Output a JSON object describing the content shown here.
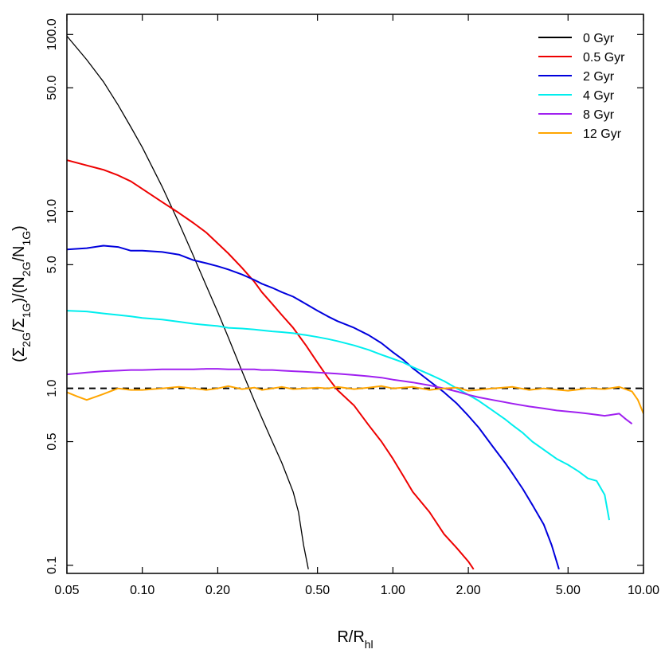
{
  "chart_data": {
    "type": "line",
    "xlabel": {
      "base": "R/R",
      "sub": "hl"
    },
    "ylabel": {
      "parts": [
        {
          "t": "(Σ",
          "sub": false
        },
        {
          "t": "2G",
          "sub": true
        },
        {
          "t": "/Σ",
          "sub": false
        },
        {
          "t": "1G",
          "sub": true
        },
        {
          "t": ")/(N",
          "sub": false
        },
        {
          "t": "2G",
          "sub": true
        },
        {
          "t": "/N",
          "sub": false
        },
        {
          "t": "1G",
          "sub": true
        },
        {
          "t": ")",
          "sub": false
        }
      ]
    },
    "x_scale": "log",
    "y_scale": "log",
    "xlim": [
      0.05,
      10.0
    ],
    "ylim": [
      0.09,
      130
    ],
    "x_ticks": [
      {
        "value": 0.05,
        "label": "0.05"
      },
      {
        "value": 0.1,
        "label": "0.10"
      },
      {
        "value": 0.2,
        "label": "0.20"
      },
      {
        "value": 0.5,
        "label": "0.50"
      },
      {
        "value": 1.0,
        "label": "1.00"
      },
      {
        "value": 2.0,
        "label": "2.00"
      },
      {
        "value": 5.0,
        "label": "5.00"
      },
      {
        "value": 10.0,
        "label": "10.00"
      }
    ],
    "y_ticks": [
      {
        "value": 0.1,
        "label": "0.1"
      },
      {
        "value": 0.5,
        "label": "0.5"
      },
      {
        "value": 1.0,
        "label": "1.0"
      },
      {
        "value": 5.0,
        "label": "5.0"
      },
      {
        "value": 10.0,
        "label": "10.0"
      },
      {
        "value": 50.0,
        "label": "50.0"
      },
      {
        "value": 100.0,
        "label": "100.0"
      }
    ],
    "reference_line": {
      "y": 1.0,
      "style": "dashed",
      "color": "#000000"
    },
    "legend_position": "top-right",
    "grid": false,
    "series": [
      {
        "name": "0 Gyr",
        "color": "#000000",
        "x": [
          0.05,
          0.06,
          0.07,
          0.08,
          0.09,
          0.1,
          0.12,
          0.14,
          0.16,
          0.18,
          0.2,
          0.22,
          0.25,
          0.28,
          0.3,
          0.33,
          0.36,
          0.4,
          0.42,
          0.44,
          0.46
        ],
        "y": [
          98,
          72,
          54,
          40,
          30,
          23,
          13.8,
          8.6,
          5.6,
          3.8,
          2.7,
          1.95,
          1.25,
          0.85,
          0.68,
          0.5,
          0.38,
          0.26,
          0.2,
          0.13,
          0.095
        ]
      },
      {
        "name": "0.5 Gyr",
        "color": "#ee0000",
        "x": [
          0.05,
          0.06,
          0.07,
          0.08,
          0.09,
          0.1,
          0.12,
          0.14,
          0.16,
          0.18,
          0.2,
          0.22,
          0.25,
          0.28,
          0.3,
          0.33,
          0.36,
          0.4,
          0.45,
          0.5,
          0.55,
          0.6,
          0.7,
          0.8,
          0.9,
          1.0,
          1.1,
          1.2,
          1.4,
          1.6,
          1.8,
          2.0,
          2.1
        ],
        "y": [
          19.5,
          18.2,
          17.2,
          16.0,
          14.8,
          13.4,
          11.3,
          9.8,
          8.6,
          7.6,
          6.6,
          5.8,
          4.8,
          4.0,
          3.5,
          3.0,
          2.6,
          2.2,
          1.75,
          1.4,
          1.15,
          0.98,
          0.8,
          0.62,
          0.5,
          0.4,
          0.32,
          0.26,
          0.2,
          0.15,
          0.125,
          0.105,
          0.095
        ]
      },
      {
        "name": "2 Gyr",
        "color": "#0000dd",
        "x": [
          0.05,
          0.06,
          0.07,
          0.08,
          0.09,
          0.1,
          0.12,
          0.14,
          0.16,
          0.18,
          0.2,
          0.22,
          0.25,
          0.28,
          0.3,
          0.33,
          0.36,
          0.4,
          0.45,
          0.5,
          0.55,
          0.6,
          0.7,
          0.8,
          0.9,
          1.0,
          1.1,
          1.2,
          1.4,
          1.6,
          1.8,
          2.0,
          2.2,
          2.5,
          2.8,
          3.0,
          3.3,
          3.6,
          4.0,
          4.3,
          4.6
        ],
        "y": [
          6.1,
          6.2,
          6.4,
          6.3,
          6.0,
          6.0,
          5.9,
          5.7,
          5.3,
          5.1,
          4.9,
          4.7,
          4.4,
          4.1,
          3.9,
          3.7,
          3.5,
          3.3,
          3.0,
          2.75,
          2.55,
          2.4,
          2.2,
          2.0,
          1.8,
          1.6,
          1.45,
          1.3,
          1.1,
          0.95,
          0.82,
          0.7,
          0.6,
          0.47,
          0.38,
          0.33,
          0.27,
          0.22,
          0.17,
          0.13,
          0.095
        ]
      },
      {
        "name": "4 Gyr",
        "color": "#00eeee",
        "x": [
          0.05,
          0.06,
          0.07,
          0.08,
          0.09,
          0.1,
          0.12,
          0.14,
          0.16,
          0.18,
          0.2,
          0.22,
          0.25,
          0.28,
          0.3,
          0.33,
          0.36,
          0.4,
          0.45,
          0.5,
          0.55,
          0.6,
          0.7,
          0.8,
          0.9,
          1.0,
          1.1,
          1.2,
          1.4,
          1.6,
          1.8,
          2.0,
          2.2,
          2.5,
          2.8,
          3.0,
          3.3,
          3.6,
          4.0,
          4.5,
          5.0,
          5.5,
          6.0,
          6.5,
          7.0,
          7.3
        ],
        "y": [
          2.75,
          2.72,
          2.65,
          2.6,
          2.55,
          2.5,
          2.45,
          2.38,
          2.32,
          2.28,
          2.25,
          2.2,
          2.18,
          2.15,
          2.13,
          2.1,
          2.08,
          2.05,
          2.0,
          1.95,
          1.9,
          1.85,
          1.75,
          1.65,
          1.55,
          1.47,
          1.4,
          1.32,
          1.2,
          1.1,
          1.0,
          0.92,
          0.85,
          0.75,
          0.67,
          0.62,
          0.56,
          0.5,
          0.45,
          0.4,
          0.37,
          0.34,
          0.31,
          0.3,
          0.25,
          0.18
        ]
      },
      {
        "name": "8 Gyr",
        "color": "#a020f0",
        "x": [
          0.05,
          0.06,
          0.07,
          0.08,
          0.09,
          0.1,
          0.12,
          0.14,
          0.16,
          0.18,
          0.2,
          0.22,
          0.25,
          0.28,
          0.3,
          0.33,
          0.36,
          0.4,
          0.45,
          0.5,
          0.55,
          0.6,
          0.7,
          0.8,
          0.9,
          1.0,
          1.2,
          1.4,
          1.6,
          1.8,
          2.0,
          2.2,
          2.5,
          3.0,
          3.5,
          4.0,
          4.5,
          5.0,
          5.5,
          6.0,
          7.0,
          8.0,
          8.5,
          9.0
        ],
        "y": [
          1.2,
          1.23,
          1.25,
          1.26,
          1.27,
          1.27,
          1.28,
          1.28,
          1.28,
          1.29,
          1.29,
          1.28,
          1.28,
          1.28,
          1.27,
          1.27,
          1.26,
          1.25,
          1.24,
          1.23,
          1.22,
          1.21,
          1.19,
          1.17,
          1.15,
          1.12,
          1.08,
          1.04,
          1.0,
          0.96,
          0.92,
          0.89,
          0.86,
          0.82,
          0.79,
          0.77,
          0.75,
          0.74,
          0.73,
          0.72,
          0.7,
          0.72,
          0.67,
          0.63
        ]
      },
      {
        "name": "12 Gyr",
        "color": "#ffa500",
        "x": [
          0.05,
          0.055,
          0.06,
          0.07,
          0.08,
          0.09,
          0.1,
          0.12,
          0.14,
          0.16,
          0.18,
          0.2,
          0.22,
          0.25,
          0.28,
          0.3,
          0.33,
          0.36,
          0.4,
          0.45,
          0.5,
          0.55,
          0.6,
          0.7,
          0.8,
          0.9,
          1.0,
          1.2,
          1.4,
          1.6,
          1.8,
          2.0,
          2.5,
          3.0,
          3.5,
          4.0,
          5.0,
          6.0,
          7.0,
          8.0,
          9.0,
          9.5,
          10.0
        ],
        "y": [
          0.95,
          0.9,
          0.86,
          0.93,
          1.0,
          0.98,
          0.98,
          1.0,
          1.02,
          1.0,
          0.98,
          1.0,
          1.03,
          0.99,
          1.01,
          0.98,
          1.0,
          1.02,
          0.99,
          1.0,
          1.01,
          1.0,
          1.02,
          0.99,
          1.01,
          1.03,
          1.0,
          1.02,
          0.98,
          1.0,
          1.01,
          0.97,
          1.0,
          1.02,
          0.98,
          1.0,
          0.97,
          1.0,
          0.99,
          1.02,
          0.96,
          0.86,
          0.72
        ]
      }
    ]
  }
}
